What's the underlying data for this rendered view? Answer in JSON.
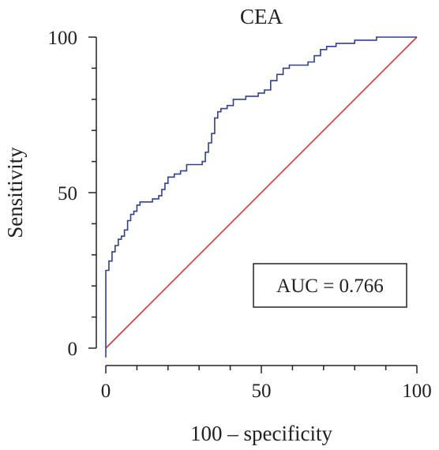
{
  "chart_data": {
    "type": "line",
    "title": "CEA",
    "xlabel": "100 – specificity",
    "ylabel": "Sensitivity",
    "xlim": [
      0,
      100
    ],
    "ylim": [
      0,
      100
    ],
    "x_ticks": [
      0,
      50,
      100
    ],
    "y_ticks": [
      0,
      50,
      100
    ],
    "grid": false,
    "legend": null,
    "annotation": "AUC = 0.766",
    "colors": {
      "roc": "#2e3f9c",
      "reference": "#e0342f",
      "axis": "#222222"
    },
    "series": [
      {
        "style": "step",
        "x": [
          0,
          0,
          1,
          1,
          2,
          2,
          3,
          3,
          4,
          4,
          5,
          5,
          6,
          6,
          7,
          7,
          8,
          8,
          9,
          9,
          10,
          10,
          11,
          11,
          13,
          13,
          15,
          15,
          17,
          17,
          18,
          18,
          19,
          19,
          20,
          20,
          22,
          22,
          24,
          24,
          26,
          26,
          29,
          29,
          31,
          31,
          32,
          32,
          33,
          33,
          34,
          34,
          35,
          35,
          36,
          36,
          37,
          37,
          39,
          39,
          41,
          41,
          43,
          43,
          45,
          45,
          47,
          47,
          49,
          49,
          51,
          51,
          53,
          53,
          55,
          55,
          57,
          57,
          59,
          59,
          62,
          62,
          65,
          65,
          67,
          67,
          69,
          69,
          71,
          71,
          74,
          74,
          77,
          77,
          80,
          80,
          84,
          84,
          87,
          87,
          100
        ],
        "y": [
          -3,
          25,
          25,
          28,
          28,
          31,
          31,
          33,
          33,
          35,
          35,
          36,
          36,
          38,
          38,
          41,
          41,
          43,
          43,
          44,
          44,
          46,
          46,
          47,
          47,
          47,
          47,
          48,
          48,
          49,
          49,
          51,
          51,
          53,
          53,
          55,
          55,
          56,
          56,
          57,
          57,
          59,
          59,
          59,
          59,
          60,
          60,
          63,
          63,
          66,
          66,
          69,
          69,
          74,
          74,
          76,
          76,
          77,
          77,
          78,
          78,
          80,
          80,
          80,
          80,
          81,
          81,
          81,
          81,
          82,
          82,
          83,
          83,
          86,
          86,
          88,
          88,
          90,
          90,
          91,
          91,
          91,
          91,
          92,
          92,
          94,
          94,
          96,
          96,
          97,
          97,
          98,
          98,
          98,
          98,
          99,
          99,
          99,
          99,
          100,
          100
        ]
      },
      {
        "style": "line",
        "x": [
          0,
          100
        ],
        "y": [
          0,
          100
        ]
      }
    ]
  }
}
